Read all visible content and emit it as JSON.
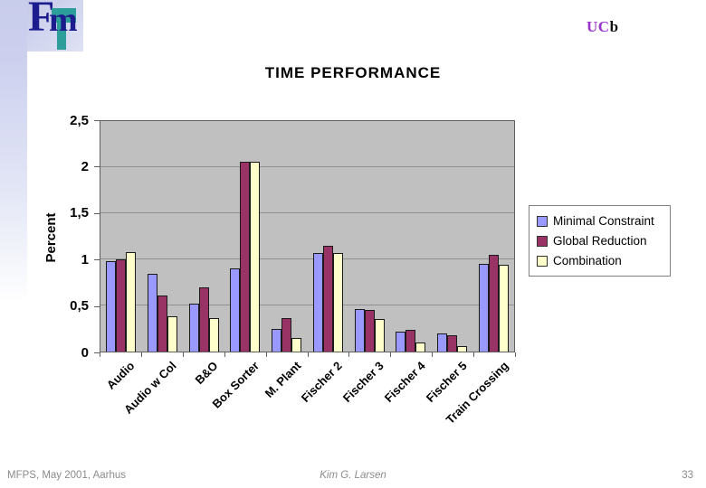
{
  "header": {
    "logo_f": "F",
    "logo_m": "m",
    "brand_uc": "UC",
    "brand_b": "b"
  },
  "footer": {
    "left": "MFPS, May 2001, Aarhus",
    "center": "Kim G. Larsen",
    "page_number": "33"
  },
  "icons": {
    "logo": "fm-logo",
    "legend_swatches": [
      "blue-square-swatch",
      "maroon-square-swatch",
      "cream-square-swatch"
    ]
  },
  "colors": {
    "plot_background": "#C0C0C0",
    "gridline": "#8F8F8F",
    "series_minimal_constraint": "#9999FF",
    "series_global_reduction": "#993366",
    "series_combination": "#FFFFCC",
    "brand_purple": "#9933CC",
    "logo_navy": "#1C1C8F",
    "logo_teal": "#2D9E99",
    "footer_gray": "#8C8C8C"
  },
  "chart_data": {
    "type": "bar",
    "title": "TIME PERFORMANCE",
    "xlabel": "",
    "ylabel": "Percent",
    "ylim": [
      0,
      2.5
    ],
    "ytick_step": 0.5,
    "ytick_labels": [
      "0",
      "0,5",
      "1",
      "1,5",
      "2",
      "2,5"
    ],
    "grid": true,
    "legend_position": "right",
    "categories": [
      "Audio",
      "Audio w Col",
      "B&O",
      "Box Sorter",
      "M. Plant",
      "Fischer 2",
      "Fischer 3",
      "Fischer 4",
      "Fischer 5",
      "Train Crossing"
    ],
    "series": [
      {
        "name": "Minimal Constraint",
        "color": "#9999FF",
        "values": [
          0.98,
          0.84,
          0.52,
          0.9,
          0.25,
          1.07,
          0.46,
          0.22,
          0.2,
          0.95
        ]
      },
      {
        "name": "Global Reduction",
        "color": "#993366",
        "values": [
          1.0,
          0.61,
          0.7,
          2.06,
          0.36,
          1.15,
          0.45,
          0.24,
          0.18,
          1.05
        ]
      },
      {
        "name": "Combination",
        "color": "#FFFFCC",
        "values": [
          1.08,
          0.38,
          0.36,
          2.06,
          0.15,
          1.07,
          0.35,
          0.1,
          0.06,
          0.94
        ]
      }
    ]
  }
}
